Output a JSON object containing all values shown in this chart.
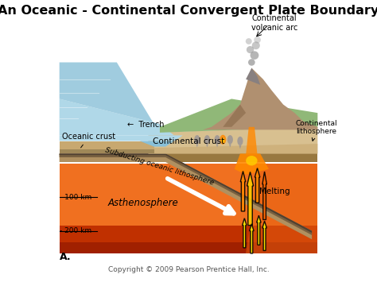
{
  "title": "An Oceanic - Continental Convergent Plate Boundary",
  "title_fontsize": 11.5,
  "title_fontweight": "bold",
  "bg_color": "#ffffff",
  "copyright": "Copyright © 2009 Pearson Prentice Hall, Inc.",
  "copyright_fontsize": 6.5,
  "labels": {
    "oceanic_crust": "Oceanic crust",
    "trench": "←  Trench",
    "continental_crust": "Continental crust",
    "subducting": "Subducting oceanic lithosphere",
    "asthenosphere": "Asthenosphere",
    "100km": "- 100 km",
    "200km": "- 200 km",
    "continental_volcanic_arc": "Continental\nvolcanic arc",
    "continental_lithosphere": "Continental\nlithosphere",
    "melting": "Melting",
    "A": "A."
  },
  "colors": {
    "ocean_blue_light": "#b0d8e8",
    "ocean_blue_mid": "#88c0d8",
    "ocean_blue_dark": "#60a8c8",
    "oceanic_crust_tan": "#c8a870",
    "oceanic_crust_dark": "#a08858",
    "continental_crust_beige": "#d8c090",
    "continental_crust_tan": "#c8a870",
    "lithosphere_tan": "#b89860",
    "lithosphere_dark": "#987840",
    "subduct_top": "#b09060",
    "subduct_dark": "#786040",
    "subduct_line": "#504030",
    "astheno_orange": "#e86010",
    "astheno_orange2": "#f07020",
    "astheno_red": "#c03000",
    "astheno_dark": "#a02000",
    "land_green": "#90b878",
    "land_green2": "#a8c890",
    "mountain_brown": "#b09070",
    "mountain_dark": "#806040",
    "volcano_grey": "#888080",
    "magma_orange": "#ff8800",
    "magma_yellow": "#ffcc00",
    "magma_red": "#dd4400",
    "fire_yellow": "#ffee00",
    "fire_orange": "#ff6600",
    "arrow_white": "#ffffff",
    "smoke_grey": "#909090"
  }
}
